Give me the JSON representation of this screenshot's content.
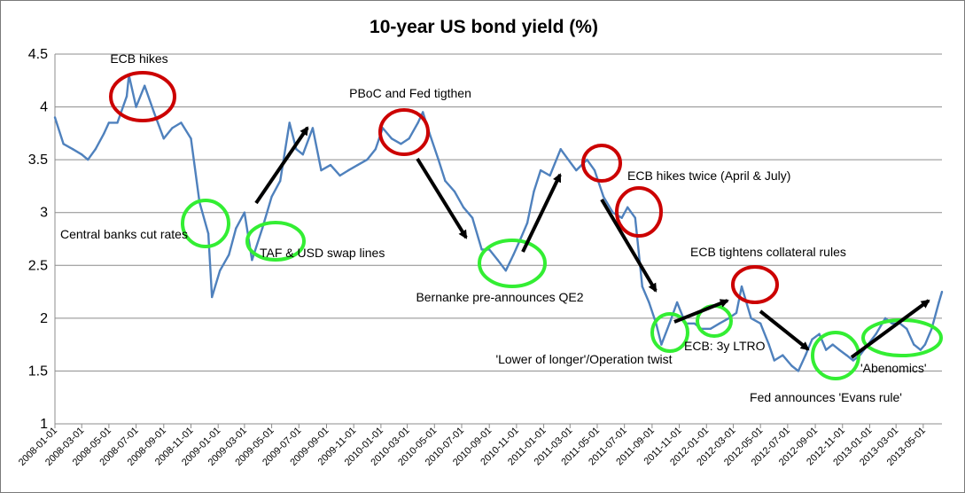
{
  "chart_data": {
    "type": "line",
    "title": "10-year US bond yield (%)",
    "xlabel": "",
    "ylabel": "",
    "ylim": [
      1,
      4.5
    ],
    "yticks": [
      "1",
      "1.5",
      "2",
      "2.5",
      "3",
      "3.5",
      "4",
      "4.5"
    ],
    "grid": "horizontal",
    "legend": "none",
    "line_color": "#4f81bd",
    "x_tick_labels": [
      "2008-01-01",
      "2008-03-01",
      "2008-05-01",
      "2008-07-01",
      "2008-09-01",
      "2008-11-01",
      "2009-01-01",
      "2009-03-01",
      "2009-05-01",
      "2009-07-01",
      "2009-09-01",
      "2009-11-01",
      "2010-01-01",
      "2010-03-01",
      "2010-05-01",
      "2010-07-01",
      "2010-09-01",
      "2010-11-01",
      "2011-01-01",
      "2011-03-01",
      "2011-05-01",
      "2011-07-01",
      "2011-09-01",
      "2011-11-01",
      "2012-01-01",
      "2012-03-01",
      "2012-05-01",
      "2012-07-01",
      "2012-09-01",
      "2012-11-01",
      "2013-01-01",
      "2013-03-01",
      "2013-05-01"
    ],
    "x": [
      "2008-01-01",
      "2008-01-20",
      "2008-02-10",
      "2008-03-01",
      "2008-03-15",
      "2008-04-01",
      "2008-04-20",
      "2008-05-01",
      "2008-05-20",
      "2008-06-10",
      "2008-06-15",
      "2008-07-01",
      "2008-07-20",
      "2008-08-10",
      "2008-09-01",
      "2008-09-20",
      "2008-10-10",
      "2008-11-01",
      "2008-11-20",
      "2008-12-10",
      "2008-12-18",
      "2009-01-05",
      "2009-01-25",
      "2009-02-10",
      "2009-03-01",
      "2009-03-18",
      "2009-04-10",
      "2009-05-01",
      "2009-05-20",
      "2009-06-10",
      "2009-06-25",
      "2009-07-10",
      "2009-08-01",
      "2009-08-20",
      "2009-09-10",
      "2009-10-01",
      "2009-10-20",
      "2009-11-10",
      "2009-12-01",
      "2009-12-20",
      "2010-01-05",
      "2010-01-25",
      "2010-02-15",
      "2010-03-05",
      "2010-03-25",
      "2010-04-05",
      "2010-04-20",
      "2010-05-10",
      "2010-05-25",
      "2010-06-15",
      "2010-07-05",
      "2010-07-25",
      "2010-08-15",
      "2010-09-01",
      "2010-09-20",
      "2010-10-08",
      "2010-10-25",
      "2010-11-10",
      "2010-11-25",
      "2010-12-10",
      "2010-12-25",
      "2011-01-15",
      "2011-02-08",
      "2011-02-25",
      "2011-03-15",
      "2011-04-08",
      "2011-04-25",
      "2011-05-15",
      "2011-06-05",
      "2011-06-25",
      "2011-07-08",
      "2011-07-25",
      "2011-08-10",
      "2011-08-25",
      "2011-09-10",
      "2011-09-22",
      "2011-10-10",
      "2011-10-27",
      "2011-11-15",
      "2011-12-05",
      "2011-12-20",
      "2012-01-10",
      "2012-01-30",
      "2012-02-20",
      "2012-03-08",
      "2012-03-20",
      "2012-04-10",
      "2012-05-01",
      "2012-05-20",
      "2012-06-01",
      "2012-06-20",
      "2012-07-10",
      "2012-07-25",
      "2012-08-10",
      "2012-08-25",
      "2012-09-10",
      "2012-09-25",
      "2012-10-10",
      "2012-10-25",
      "2012-11-10",
      "2012-11-25",
      "2012-12-10",
      "2012-12-28",
      "2013-01-15",
      "2013-02-05",
      "2013-02-20",
      "2013-03-10",
      "2013-03-25",
      "2013-04-10",
      "2013-04-25",
      "2013-05-05",
      "2013-05-20",
      "2013-06-05",
      "2013-06-12"
    ],
    "values": [
      3.9,
      3.65,
      3.6,
      3.55,
      3.5,
      3.6,
      3.75,
      3.85,
      3.85,
      4.1,
      4.3,
      4.0,
      4.2,
      3.95,
      3.7,
      3.8,
      3.85,
      3.7,
      3.1,
      2.8,
      2.2,
      2.45,
      2.6,
      2.85,
      3.0,
      2.55,
      2.85,
      3.15,
      3.3,
      3.85,
      3.6,
      3.55,
      3.8,
      3.4,
      3.45,
      3.35,
      3.4,
      3.45,
      3.5,
      3.6,
      3.8,
      3.7,
      3.65,
      3.7,
      3.85,
      3.95,
      3.75,
      3.5,
      3.3,
      3.2,
      3.05,
      2.95,
      2.65,
      2.65,
      2.55,
      2.45,
      2.6,
      2.75,
      2.9,
      3.2,
      3.4,
      3.35,
      3.6,
      3.5,
      3.4,
      3.5,
      3.4,
      3.15,
      3.0,
      2.95,
      3.05,
      2.95,
      2.3,
      2.15,
      1.95,
      1.75,
      1.95,
      2.15,
      1.95,
      1.95,
      1.9,
      1.9,
      1.95,
      2.0,
      2.05,
      2.3,
      2.0,
      1.95,
      1.75,
      1.6,
      1.65,
      1.55,
      1.5,
      1.65,
      1.8,
      1.85,
      1.7,
      1.75,
      1.7,
      1.65,
      1.6,
      1.65,
      1.75,
      1.85,
      2.0,
      1.95,
      1.95,
      1.9,
      1.75,
      1.7,
      1.75,
      1.9,
      2.15,
      2.25
    ],
    "annotations": [
      {
        "text": "ECB hikes"
      },
      {
        "text": "PBoC and Fed tigthen"
      },
      {
        "text": "Central banks cut rates"
      },
      {
        "text": "TAF & USD swap lines"
      },
      {
        "text": "Bernanke pre-announces QE2"
      },
      {
        "text": "ECB hikes twice (April & July)"
      },
      {
        "text": "ECB tightens collateral rules"
      },
      {
        "text": "'Lower of longer'/Operation twist"
      },
      {
        "text": "ECB: 3y LTRO"
      },
      {
        "text": "'Abenomics'"
      },
      {
        "text": "Fed announces 'Evans rule'"
      }
    ],
    "highlight_colors": {
      "tightening": "#cc0000",
      "easing": "#33ee33",
      "arrow": "#000000"
    }
  }
}
